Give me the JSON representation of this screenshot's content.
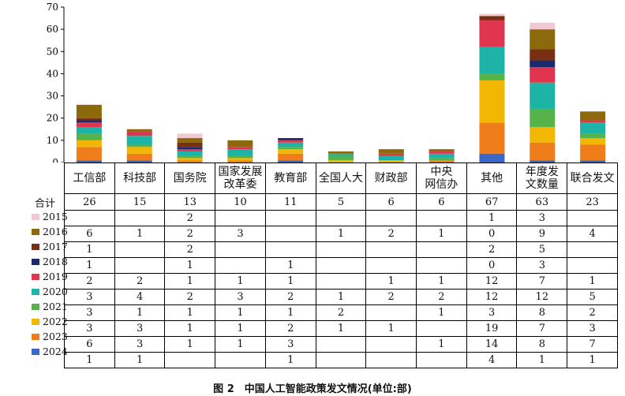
{
  "caption": "图 2　中国人工智能政策发文情况(单位:部)",
  "total_label": "合计",
  "chart_data": {
    "type": "bar",
    "stacked": true,
    "categories": [
      "工信部",
      "科技部",
      "国务院",
      "国家发展改革委",
      "教育部",
      "全国人大",
      "财政部",
      "中央网信办",
      "其他",
      "年度发文数量",
      "联合发文"
    ],
    "category_lines": [
      [
        "工信部"
      ],
      [
        "科技部"
      ],
      [
        "国务院"
      ],
      [
        "国家发展",
        "改革委"
      ],
      [
        "教育部"
      ],
      [
        "全国人大"
      ],
      [
        "财政部"
      ],
      [
        "中央",
        "网信办"
      ],
      [
        "其他"
      ],
      [
        "年度发",
        "文数量"
      ],
      [
        "联合发文"
      ]
    ],
    "totals": [
      "26",
      "15",
      "13",
      "10",
      "11",
      "5",
      "6",
      "6",
      "67",
      "63",
      "23"
    ],
    "ylim": [
      0,
      70
    ],
    "yticks": [
      0,
      10,
      20,
      30,
      40,
      50,
      60,
      70
    ],
    "series": [
      {
        "name": "2015",
        "color": "#f2c9d2",
        "values": [
          null,
          null,
          2,
          null,
          null,
          null,
          null,
          null,
          1,
          3,
          null
        ]
      },
      {
        "name": "2016",
        "color": "#8c6a0c",
        "values": [
          6,
          1,
          2,
          3,
          null,
          1,
          2,
          1,
          0,
          9,
          4
        ]
      },
      {
        "name": "2017",
        "color": "#7a2e12",
        "values": [
          1,
          null,
          2,
          null,
          null,
          null,
          null,
          null,
          2,
          5,
          null
        ]
      },
      {
        "name": "2018",
        "color": "#1a2a6c",
        "values": [
          1,
          null,
          1,
          null,
          1,
          null,
          null,
          null,
          0,
          3,
          null
        ]
      },
      {
        "name": "2019",
        "color": "#e0354e",
        "values": [
          2,
          2,
          1,
          1,
          1,
          null,
          1,
          1,
          12,
          7,
          1
        ]
      },
      {
        "name": "2020",
        "color": "#1db3a6",
        "values": [
          3,
          4,
          2,
          3,
          2,
          1,
          2,
          2,
          12,
          12,
          5
        ]
      },
      {
        "name": "2021",
        "color": "#56b349",
        "values": [
          3,
          1,
          1,
          1,
          1,
          2,
          null,
          1,
          3,
          8,
          2
        ]
      },
      {
        "name": "2022",
        "color": "#f2b705",
        "values": [
          3,
          3,
          1,
          1,
          2,
          1,
          1,
          null,
          19,
          7,
          3
        ]
      },
      {
        "name": "2023",
        "color": "#ef7d1a",
        "values": [
          6,
          3,
          1,
          1,
          3,
          null,
          null,
          1,
          14,
          8,
          7
        ]
      },
      {
        "name": "2024",
        "color": "#3a67c8",
        "values": [
          1,
          1,
          null,
          null,
          1,
          null,
          null,
          null,
          4,
          1,
          1
        ]
      }
    ]
  }
}
